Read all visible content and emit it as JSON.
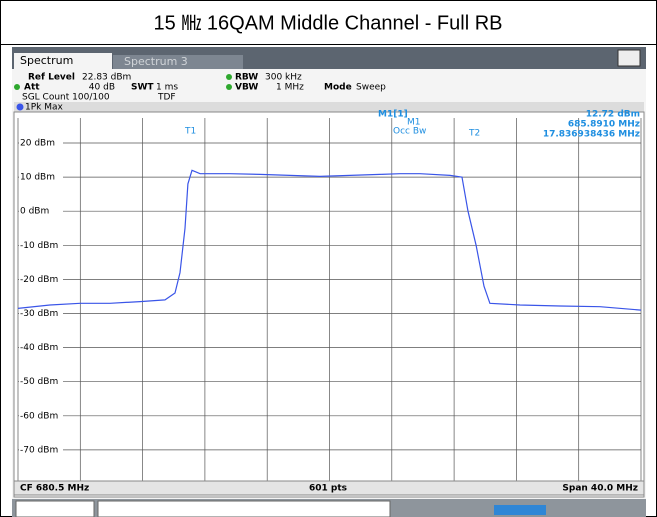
{
  "header": {
    "title": "15 ㎒ 16QAM Middle Channel - Full RB"
  },
  "tabs": [
    "Spectrum",
    "Spectrum 3"
  ],
  "settings": {
    "ref_level_label": "Ref Level",
    "ref_level": "22.83 dBm",
    "att_label": "Att",
    "att": "40 dB",
    "swt_label": "SWT",
    "swt": "1 ms",
    "rbw_label": "RBW",
    "rbw": "300 kHz",
    "vbw_label": "VBW",
    "vbw": "1 MHz",
    "mode_label": "Mode",
    "mode": "Sweep",
    "count": "SGL Count 100/100",
    "tdf": "TDF"
  },
  "markers": {
    "t1": "T1",
    "t2": "T2",
    "m1": "M1",
    "occ": "Occ Bw",
    "m1_header": "M1[1]",
    "m1_level": "12.72 dBm",
    "m1_freq": "685.8910 MHz",
    "occ_bw": "17.836938436 MHz"
  },
  "footer": {
    "cf": "CF 680.5 MHz",
    "points": "601 pts",
    "span": "Span 40.0 MHz"
  },
  "chart_data": {
    "type": "line",
    "x": [
      660.5,
      662.55,
      664.48,
      666.41,
      668.33,
      669.94,
      670.58,
      670.9,
      671.22,
      671.41,
      671.67,
      672.19,
      674.11,
      676.04,
      677.96,
      679.89,
      681.82,
      683.74,
      685.03,
      686.31,
      688.24,
      689.01,
      689.39,
      689.91,
      690.42,
      690.8,
      692.73,
      695.3,
      697.87,
      700.5
    ],
    "series": [
      {
        "name": "1Pk Max",
        "color": "#3a55e8",
        "values": [
          -28.5,
          -27.5,
          -27,
          -27,
          -26.5,
          -26,
          -24,
          -18,
          -5,
          8,
          12,
          11,
          11,
          10.8,
          10.5,
          10.2,
          10.5,
          10.8,
          11,
          11,
          10.5,
          10,
          0,
          -10,
          -22,
          -27,
          -27.5,
          -27.8,
          -28,
          -29
        ]
      }
    ],
    "xlim": [
      660.5,
      700.5
    ],
    "ylim": [
      -80,
      20
    ],
    "yticks": [
      {
        "value": 20,
        "label": "20 dBm"
      },
      {
        "value": 10,
        "label": "10 dBm"
      },
      {
        "value": 0,
        "label": "0 dBm"
      },
      {
        "value": -10,
        "label": "-10 dBm"
      },
      {
        "value": -20,
        "label": "-20 dBm"
      },
      {
        "value": -30,
        "label": "-30 dBm"
      },
      {
        "value": -40,
        "label": "-40 dBm"
      },
      {
        "value": -50,
        "label": "-50 dBm"
      },
      {
        "value": -60,
        "label": "-60 dBm"
      },
      {
        "value": -70,
        "label": "-70 dBm"
      }
    ],
    "grid": true
  }
}
